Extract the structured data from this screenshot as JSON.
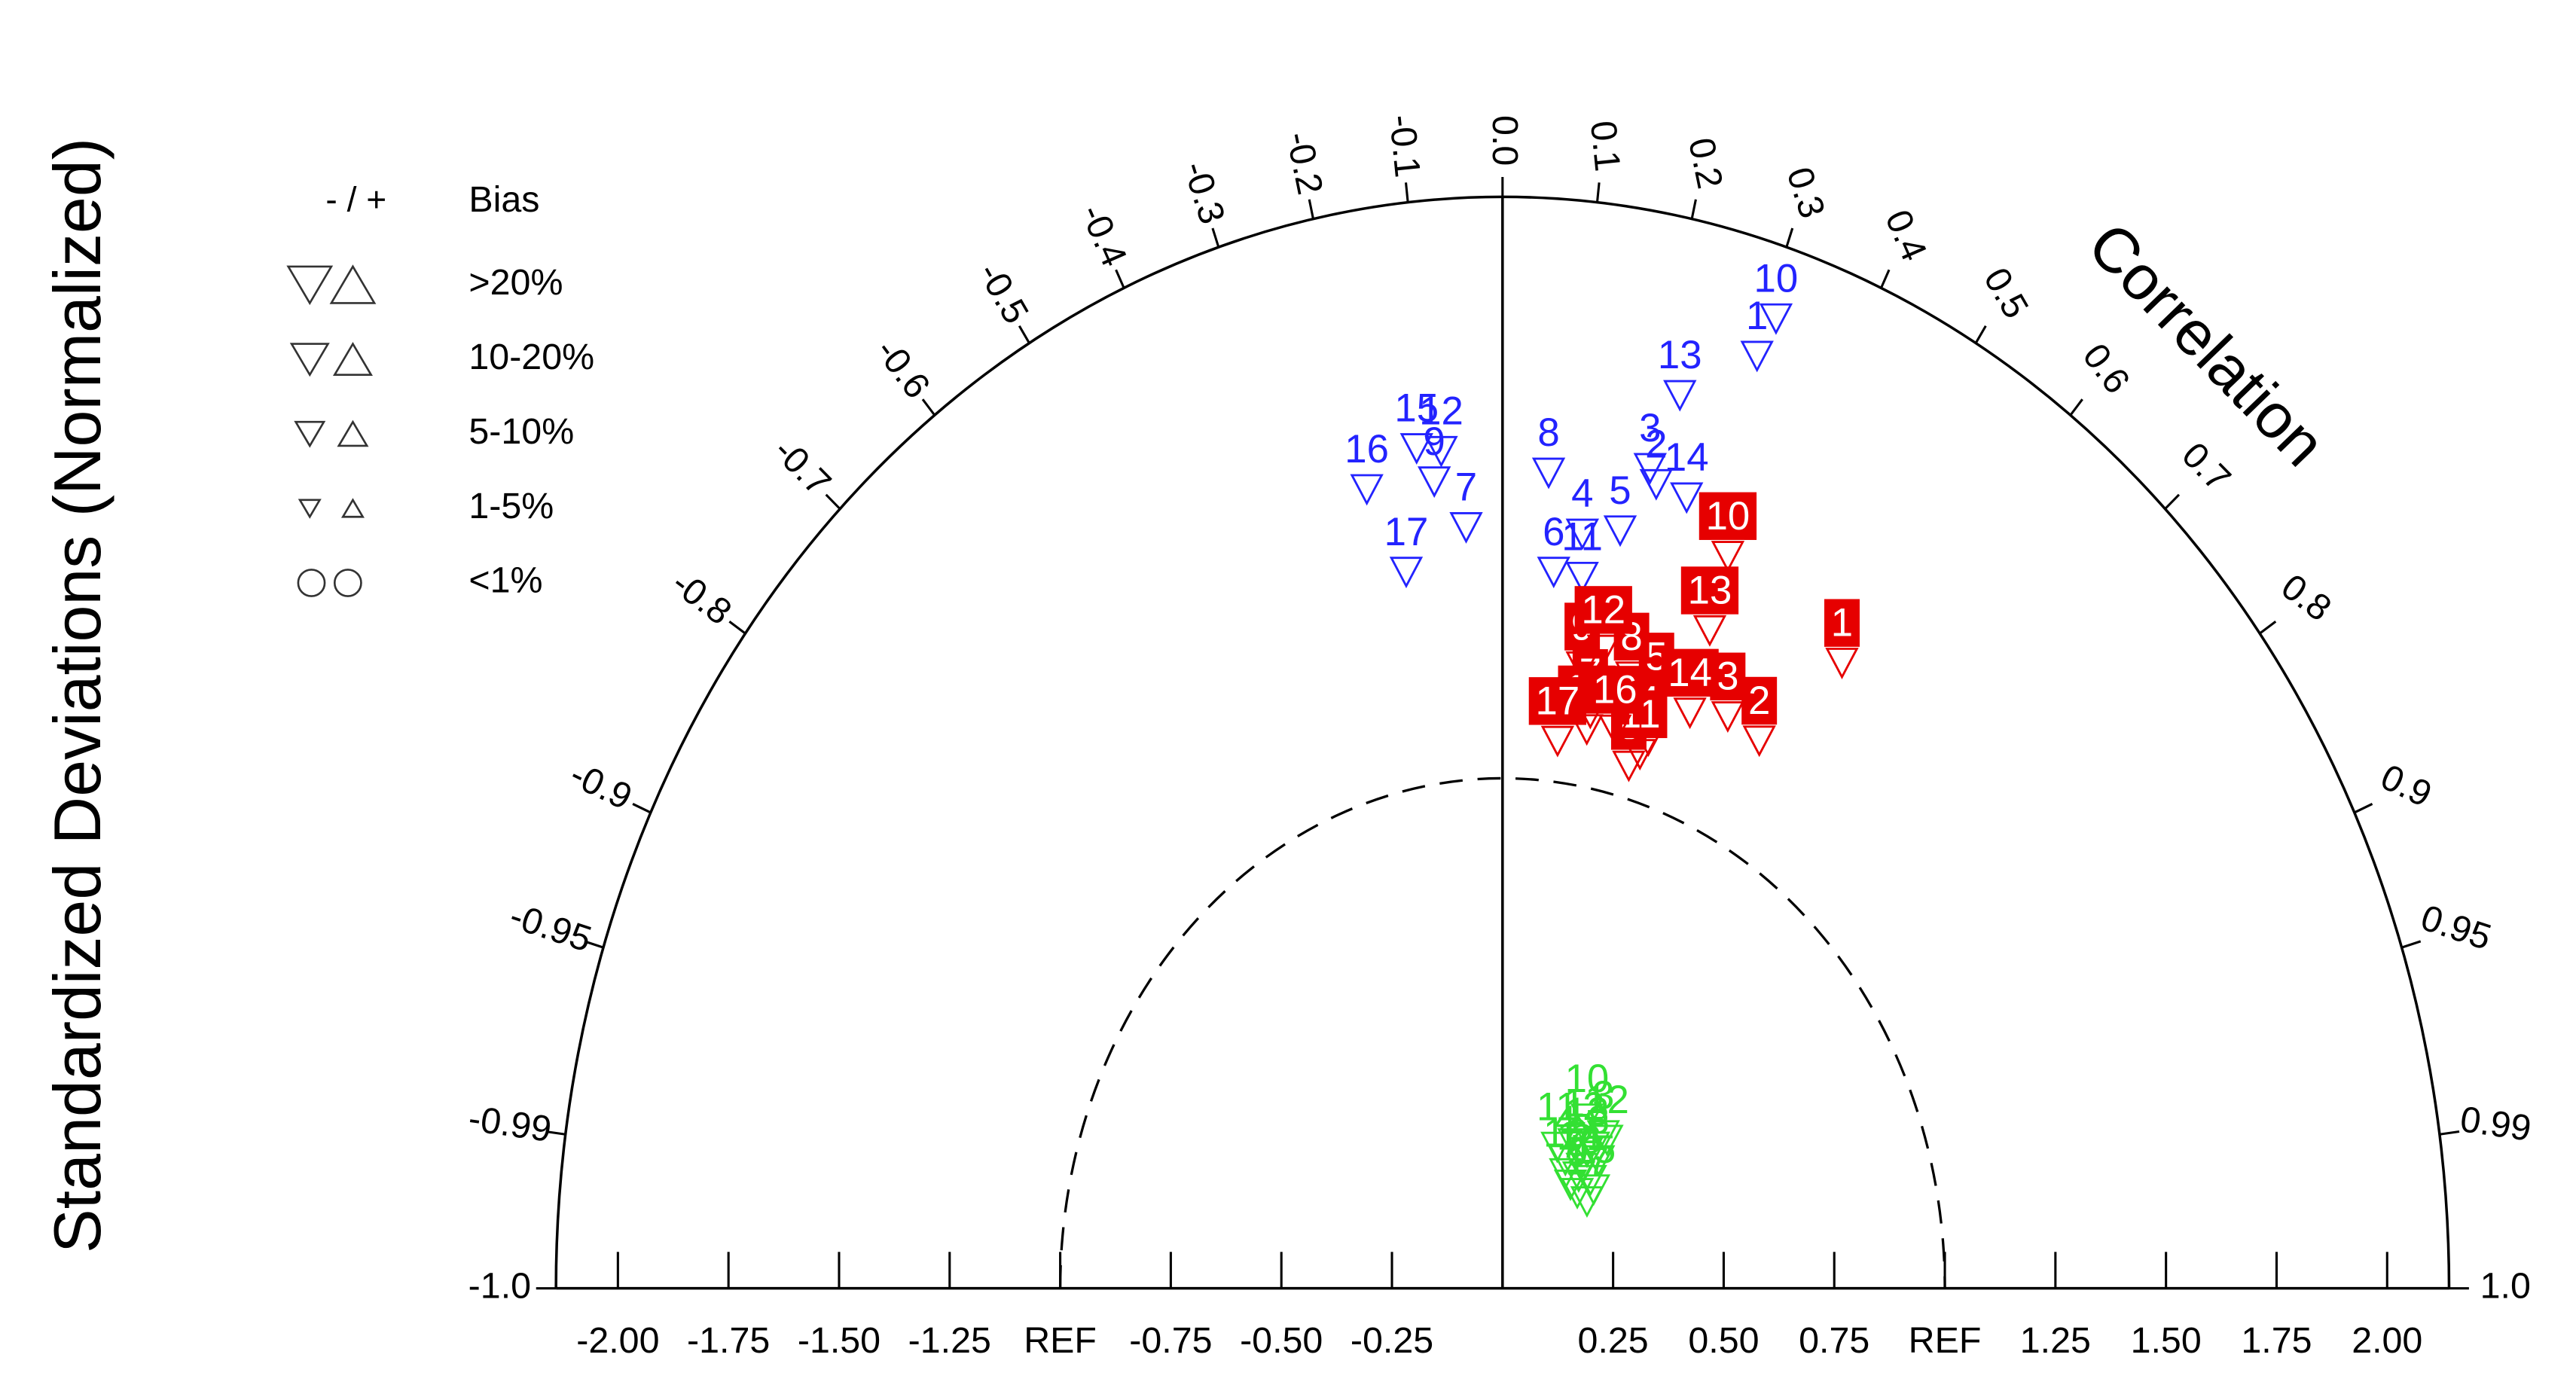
{
  "chart_data": {
    "type": "taylor",
    "y_label": "Standardized Deviations (Normalized)",
    "corr_label": "Correlation",
    "xlim": [
      -2.14,
      2.14
    ],
    "xticks": [
      {
        "value": -2,
        "label": "-2.00"
      },
      {
        "value": -1.75,
        "label": "-1.75"
      },
      {
        "value": -1.5,
        "label": "-1.50"
      },
      {
        "value": -1.25,
        "label": "-1.25"
      },
      {
        "value": -1,
        "label": "REF"
      },
      {
        "value": -0.75,
        "label": "-0.75"
      },
      {
        "value": -0.5,
        "label": "-0.50"
      },
      {
        "value": -0.25,
        "label": "-0.25"
      },
      {
        "value": 0.25,
        "label": "0.25"
      },
      {
        "value": 0.5,
        "label": "0.50"
      },
      {
        "value": 0.75,
        "label": "0.75"
      },
      {
        "value": 1,
        "label": "REF"
      },
      {
        "value": 1.25,
        "label": "1.25"
      },
      {
        "value": 1.5,
        "label": "1.50"
      },
      {
        "value": 1.75,
        "label": "1.75"
      },
      {
        "value": 2,
        "label": "2.00"
      }
    ],
    "corr_ticks": [
      {
        "value": -1,
        "label": "-1.0"
      },
      -0.99,
      -0.95,
      -0.9,
      -0.8,
      -0.7,
      -0.6,
      -0.5,
      -0.4,
      -0.3,
      -0.2,
      -0.1,
      {
        "value": 0,
        "label": "0.0"
      },
      0.1,
      0.2,
      0.3,
      0.4,
      0.5,
      0.6,
      0.7,
      0.8,
      0.9,
      0.95,
      0.99,
      {
        "value": 1,
        "label": "1.0"
      }
    ],
    "legend": {
      "sign_label": "- / +",
      "title": "Bias",
      "items": [
        ">20%",
        "10-20%",
        "5-10%",
        "1-5%",
        "<1%"
      ]
    },
    "series": [
      {
        "color": "#2323ff",
        "label_box": false,
        "labels": [
          "1",
          "2",
          "3",
          "4",
          "5",
          "6",
          "7",
          "8",
          "9",
          "10",
          "11",
          "12",
          "13",
          "14",
          "15",
          "16",
          "17"
        ],
        "std": [
          1.918,
          1.616,
          1.644,
          1.492,
          1.511,
          1.411,
          1.496,
          1.604,
          1.591,
          2.001,
          1.408,
          1.649,
          1.798,
          1.607,
          1.66,
          1.598,
          1.423
        ],
        "corr": [
          0.3,
          0.215,
          0.203,
          0.121,
          0.176,
          0.082,
          -0.055,
          0.065,
          -0.097,
          0.309,
          0.128,
          -0.084,
          0.223,
          0.259,
          -0.117,
          -0.192,
          -0.153
        ]
      },
      {
        "color": "#e60000",
        "label_box": true,
        "labels": [
          "1",
          "2",
          "3",
          "4",
          "5",
          "6",
          "7",
          "8",
          "9",
          "10",
          "11",
          "12",
          "13",
          "14",
          "15",
          "16",
          "17"
        ],
        "std": [
          1.448,
          1.222,
          1.233,
          1.125,
          1.213,
          1.065,
          1.147,
          1.236,
          1.234,
          1.525,
          1.094,
          1.274,
          1.374,
          1.207,
          1.114,
          1.126,
          1.082
        ],
        "corr": [
          0.53,
          0.475,
          0.413,
          0.293,
          0.287,
          0.268,
          0.173,
          0.236,
          0.146,
          0.334,
          0.284,
          0.179,
          0.341,
          0.351,
          0.171,
          0.226,
          0.115
        ]
      },
      {
        "color": "#33e033",
        "label_box": false,
        "labels": [
          "1",
          "2",
          "3",
          "4",
          "5",
          "6",
          "7",
          "8",
          "9",
          "10",
          "11",
          "12",
          "13",
          "14",
          "15",
          "16",
          "17"
        ],
        "std": [
          0.328,
          0.347,
          0.378,
          0.29,
          0.298,
          0.292,
          0.256,
          0.333,
          0.253,
          0.385,
          0.305,
          0.376,
          0.33,
          0.28,
          0.284,
          0.268,
          0.257
        ],
        "corr": [
          0.491,
          0.594,
          0.603,
          0.49,
          0.604,
          0.681,
          0.6,
          0.652,
          0.668,
          0.496,
          0.405,
          0.628,
          0.579,
          0.615,
          0.726,
          0.531,
          0.743
        ]
      }
    ]
  }
}
